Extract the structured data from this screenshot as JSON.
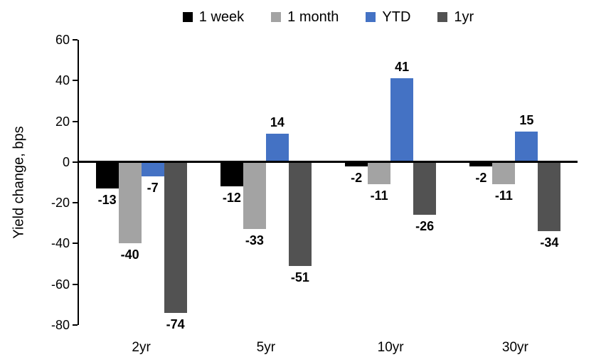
{
  "chart_data": {
    "type": "bar",
    "title": "",
    "categories": [
      "2yr",
      "5yr",
      "10yr",
      "30yr"
    ],
    "series": [
      {
        "name": "1 week",
        "color": "#000000",
        "values": [
          -13,
          -12,
          -2,
          -2
        ]
      },
      {
        "name": "1 month",
        "color": "#A3A3A3",
        "values": [
          -40,
          -33,
          -11,
          -11
        ]
      },
      {
        "name": "YTD",
        "color": "#4472C4",
        "values": [
          -7,
          14,
          41,
          15
        ]
      },
      {
        "name": "1yr",
        "color": "#525252",
        "values": [
          -74,
          -51,
          -26,
          -34
        ]
      }
    ],
    "xlabel": "",
    "ylabel": "Yield change, bps",
    "ylim": [
      -80,
      60
    ],
    "yticks": [
      60,
      40,
      20,
      0,
      -20,
      -40,
      -60,
      -80
    ],
    "grid": false,
    "legend_position": "top",
    "data_labels": true,
    "axis_color": "#000000",
    "background_color": "#FFFFFF"
  }
}
